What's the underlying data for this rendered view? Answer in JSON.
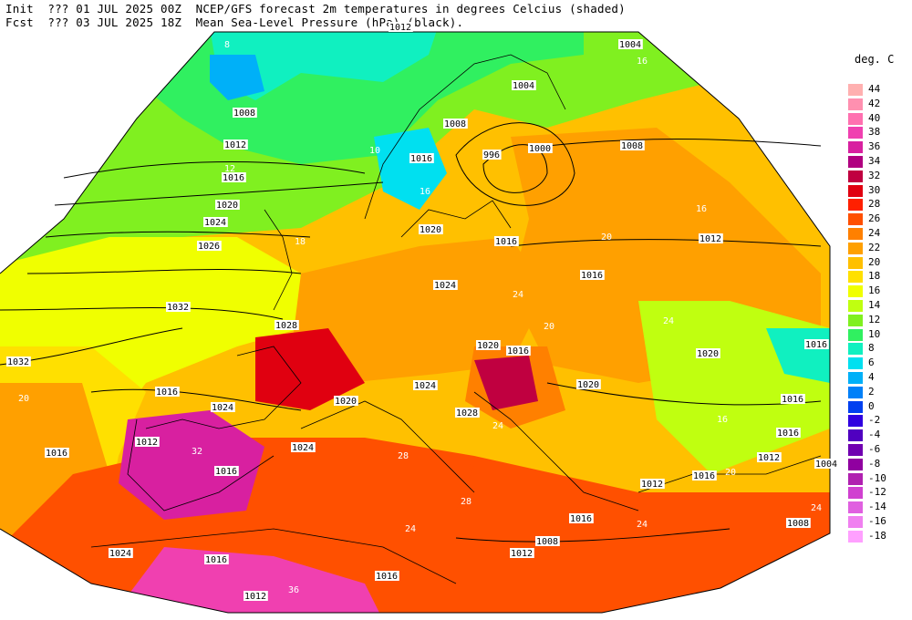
{
  "header": {
    "init_label": "Init",
    "init_value": "??? 01 JUL 2025 00Z",
    "fcst_label": "Fcst",
    "fcst_value": "??? 03 JUL 2025 18Z",
    "title_line1": "NCEP/GFS forecast 2m temperatures in degrees Celcius (shaded)",
    "title_line2": "Mean Sea-Level Pressure (hPa) (black)."
  },
  "legend": {
    "title": "deg. C",
    "entries": [
      {
        "label": "44",
        "color": "#ffb0b0"
      },
      {
        "label": "42",
        "color": "#ff90b0"
      },
      {
        "label": "40",
        "color": "#ff70b0"
      },
      {
        "label": "38",
        "color": "#f040b0"
      },
      {
        "label": "36",
        "color": "#d820a0"
      },
      {
        "label": "34",
        "color": "#b00080"
      },
      {
        "label": "32",
        "color": "#c00040"
      },
      {
        "label": "30",
        "color": "#e00010"
      },
      {
        "label": "28",
        "color": "#ff2000"
      },
      {
        "label": "26",
        "color": "#ff5000"
      },
      {
        "label": "24",
        "color": "#ff8000"
      },
      {
        "label": "22",
        "color": "#ffa000"
      },
      {
        "label": "20",
        "color": "#ffc000"
      },
      {
        "label": "18",
        "color": "#ffe000"
      },
      {
        "label": "16",
        "color": "#f0ff00"
      },
      {
        "label": "14",
        "color": "#c0ff10"
      },
      {
        "label": "12",
        "color": "#80f020"
      },
      {
        "label": "10",
        "color": "#30f060"
      },
      {
        "label": "8",
        "color": "#10f0c0"
      },
      {
        "label": "6",
        "color": "#00e0f0"
      },
      {
        "label": "4",
        "color": "#00b0f8"
      },
      {
        "label": "2",
        "color": "#0080f8"
      },
      {
        "label": "0",
        "color": "#0040f0"
      },
      {
        "label": "-2",
        "color": "#3000e0"
      },
      {
        "label": "-4",
        "color": "#5000c0"
      },
      {
        "label": "-6",
        "color": "#7000b0"
      },
      {
        "label": "-8",
        "color": "#9000a0"
      },
      {
        "label": "-10",
        "color": "#b020b0"
      },
      {
        "label": "-12",
        "color": "#d040d0"
      },
      {
        "label": "-14",
        "color": "#e060e0"
      },
      {
        "label": "-16",
        "color": "#f080f0"
      },
      {
        "label": "-18",
        "color": "#ffa0ff"
      }
    ]
  },
  "isobar_labels": [
    "1012",
    "1004",
    "1004",
    "1008",
    "1008",
    "1000",
    "996",
    "1008",
    "1012",
    "1016",
    "1016",
    "1020",
    "1024",
    "1020",
    "1016",
    "1012",
    "1026",
    "1016",
    "1032",
    "1024",
    "1028",
    "1016",
    "1032",
    "1020",
    "1024",
    "1016",
    "1020",
    "1024",
    "1020",
    "1016",
    "1012",
    "1028",
    "1016",
    "1024",
    "1020",
    "1016",
    "1016",
    "1016",
    "1012",
    "1012",
    "1008",
    "1004",
    "1016",
    "1008",
    "1016",
    "1016",
    "1012",
    "1024",
    "1016",
    "1012"
  ],
  "temperature_labels": [
    "8",
    "16",
    "10",
    "12",
    "16",
    "18",
    "20",
    "16",
    "20",
    "24",
    "24",
    "20",
    "24",
    "28",
    "28",
    "32",
    "36",
    "24",
    "24",
    "16",
    "20",
    "24"
  ]
}
